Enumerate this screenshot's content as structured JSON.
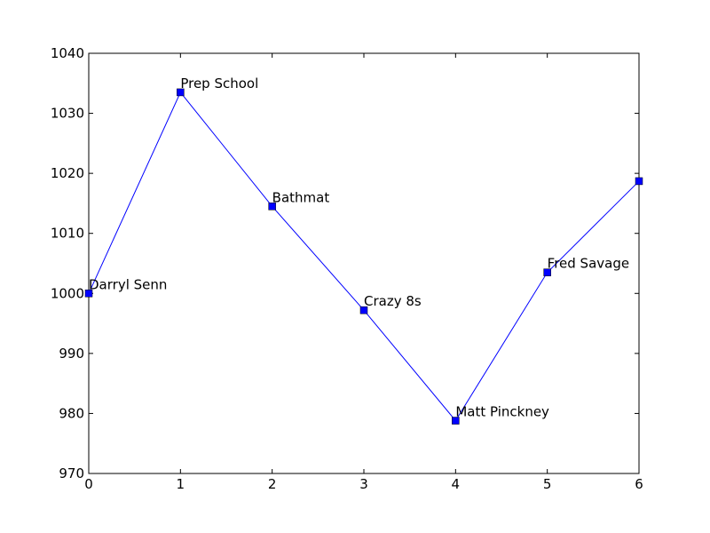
{
  "chart_data": {
    "type": "line",
    "title": "",
    "xlabel": "",
    "ylabel": "",
    "x": [
      0,
      1,
      2,
      3,
      4,
      5,
      6
    ],
    "series": [
      {
        "values": [
          1000.0,
          1033.5,
          1014.5,
          997.2,
          978.8,
          1003.5,
          1018.7
        ],
        "point_labels": [
          "Darryl Senn",
          "Prep School",
          "Bathmat",
          "Crazy 8s",
          "Matt Pinckney",
          "Fred Savage",
          ""
        ],
        "color": "#0000ff",
        "marker": "square"
      }
    ],
    "xlim": [
      0,
      6
    ],
    "ylim": [
      970,
      1040
    ],
    "xticks": [
      0,
      1,
      2,
      3,
      4,
      5,
      6
    ],
    "yticks": [
      970,
      980,
      990,
      1000,
      1010,
      1020,
      1030,
      1040
    ],
    "grid": false,
    "legend": "none"
  }
}
